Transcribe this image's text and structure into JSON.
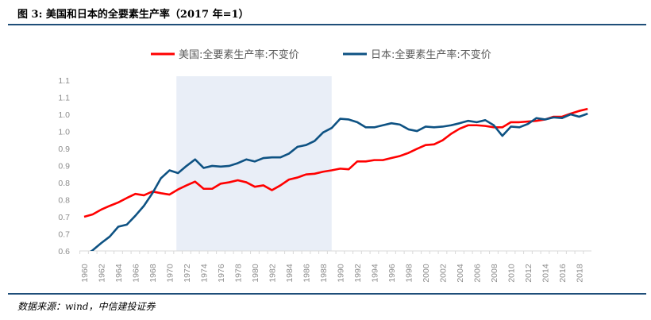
{
  "title": "图 3:  美国和日本的全要素生产率（2017 年=1）",
  "source": "数据来源：wind，中信建投证券",
  "chart_data": {
    "type": "line",
    "title": "",
    "xlabel": "",
    "ylabel": "",
    "ylim": [
      0.6,
      1.1
    ],
    "yticks": [
      0.6,
      0.65,
      0.7,
      0.75,
      0.8,
      0.85,
      0.9,
      0.95,
      1.0,
      1.05,
      1.1
    ],
    "ytick_labels": [
      "0.6",
      "0.7",
      "0.7",
      "0.8",
      "0.8",
      "0.9",
      "0.9",
      "1.0",
      "1.0",
      "1.1",
      "1.1"
    ],
    "xtick_labels": [
      "1960",
      "1962",
      "1964",
      "1966",
      "1968",
      "1970",
      "1972",
      "1974",
      "1976",
      "1978",
      "1980",
      "1982",
      "1984",
      "1986",
      "1988",
      "1990",
      "1992",
      "1994",
      "1996",
      "1998",
      "2000",
      "2002",
      "2004",
      "2006",
      "2008",
      "2010",
      "2012",
      "2014",
      "2016",
      "2018"
    ],
    "grid": false,
    "legend_position": "top",
    "shaded_range": [
      1971,
      1989
    ],
    "shade_color": "#e9eef7",
    "x": [
      1960,
      1961,
      1962,
      1963,
      1964,
      1965,
      1966,
      1967,
      1968,
      1969,
      1970,
      1971,
      1972,
      1973,
      1974,
      1975,
      1976,
      1977,
      1978,
      1979,
      1980,
      1981,
      1982,
      1983,
      1984,
      1985,
      1986,
      1987,
      1988,
      1989,
      1990,
      1991,
      1992,
      1993,
      1994,
      1995,
      1996,
      1997,
      1998,
      1999,
      2000,
      2001,
      2002,
      2003,
      2004,
      2005,
      2006,
      2007,
      2008,
      2009,
      2010,
      2011,
      2012,
      2013,
      2014,
      2015,
      2016,
      2017,
      2018,
      2019
    ],
    "series": [
      {
        "name": "美国:全要素生产率:不变价",
        "color": "#ff0000",
        "values": [
          0.7,
          0.707,
          0.721,
          0.732,
          0.742,
          0.755,
          0.767,
          0.763,
          0.774,
          0.769,
          0.765,
          0.78,
          0.792,
          0.803,
          0.782,
          0.782,
          0.797,
          0.801,
          0.807,
          0.801,
          0.788,
          0.792,
          0.778,
          0.792,
          0.809,
          0.815,
          0.824,
          0.826,
          0.832,
          0.836,
          0.841,
          0.839,
          0.862,
          0.862,
          0.866,
          0.866,
          0.872,
          0.878,
          0.887,
          0.899,
          0.91,
          0.912,
          0.924,
          0.943,
          0.958,
          0.968,
          0.968,
          0.966,
          0.962,
          0.962,
          0.977,
          0.977,
          0.979,
          0.981,
          0.985,
          0.993,
          0.993,
          1.002,
          1.01,
          1.016
        ]
      },
      {
        "name": "日本:全要素生产率:不变价",
        "color": "#0e5283",
        "values": [
          0.585,
          0.602,
          0.623,
          0.642,
          0.671,
          0.677,
          0.703,
          0.732,
          0.769,
          0.813,
          0.836,
          0.828,
          0.849,
          0.868,
          0.843,
          0.849,
          0.847,
          0.849,
          0.857,
          0.868,
          0.862,
          0.872,
          0.874,
          0.874,
          0.885,
          0.905,
          0.91,
          0.922,
          0.947,
          0.96,
          0.987,
          0.985,
          0.977,
          0.962,
          0.962,
          0.968,
          0.974,
          0.97,
          0.956,
          0.951,
          0.964,
          0.962,
          0.964,
          0.968,
          0.974,
          0.981,
          0.977,
          0.983,
          0.968,
          0.937,
          0.964,
          0.962,
          0.972,
          0.989,
          0.985,
          0.991,
          0.989,
          1.0,
          0.993,
          1.002
        ]
      }
    ]
  }
}
